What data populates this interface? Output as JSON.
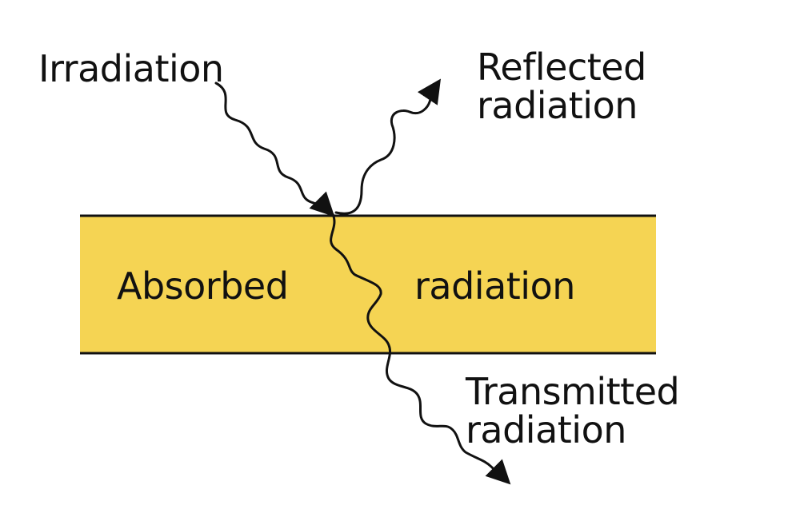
{
  "labels": {
    "irradiation": "Irradiation",
    "reflected": [
      "Reflected",
      "radiation"
    ],
    "absorbed_left": "Absorbed",
    "absorbed_right": "radiation",
    "transmitted": [
      "Transmitted",
      "radiation"
    ]
  },
  "colors": {
    "layer_fill": "#F5D453",
    "line": "#111111",
    "background": "#FFFFFF"
  }
}
